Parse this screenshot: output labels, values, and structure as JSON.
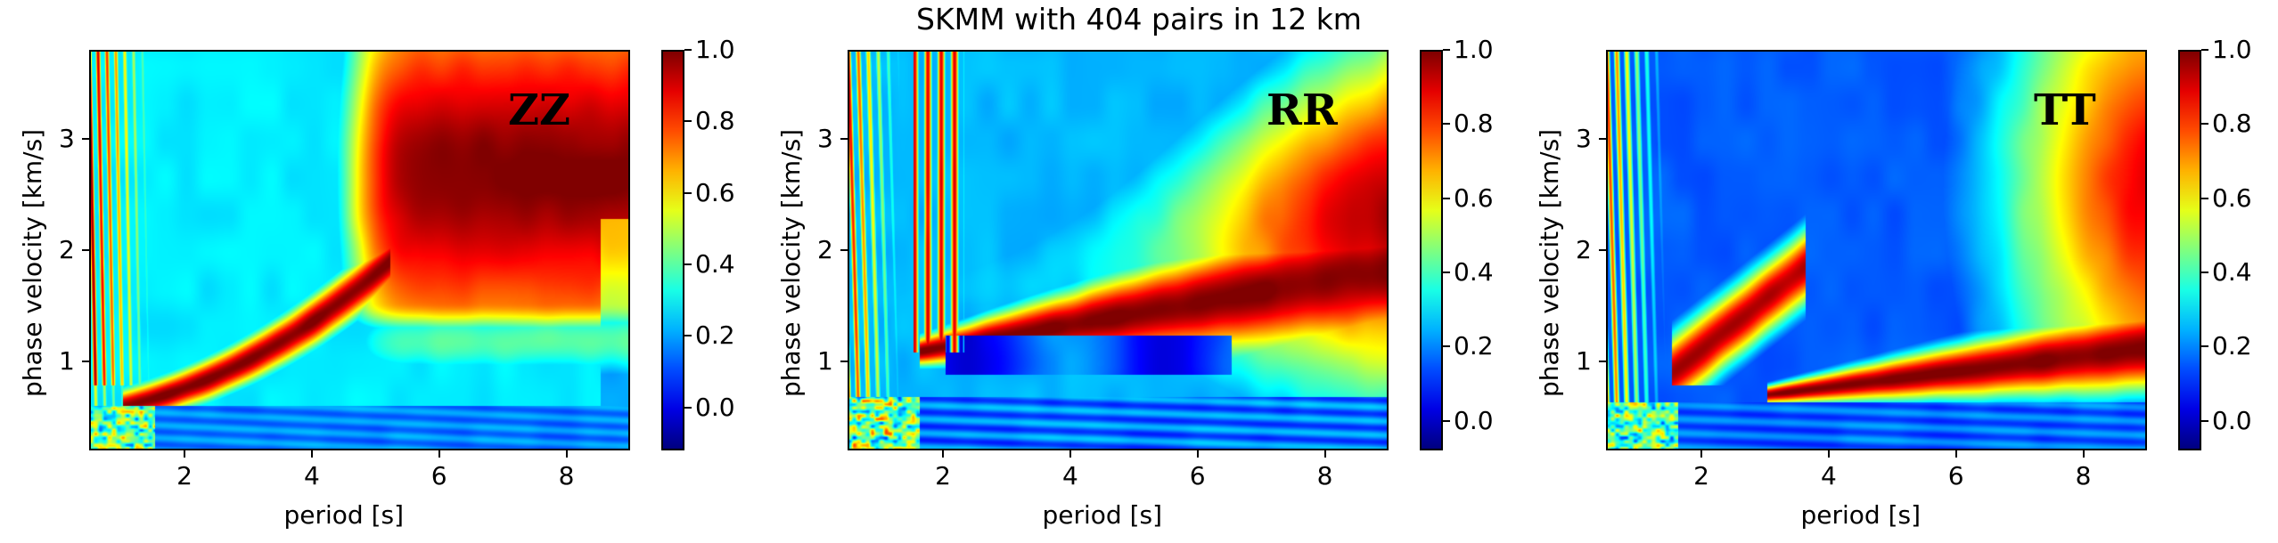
{
  "title": "SKMM with 404 pairs in 12 km",
  "chart_data": [
    {
      "type": "heatmap",
      "label": "ZZ",
      "xlabel": "period [s]",
      "ylabel": "phase velocity [km/s]",
      "xlim": [
        0.5,
        9.0
      ],
      "ylim": [
        0.2,
        3.8
      ],
      "xticks": [
        2,
        4,
        6,
        8
      ],
      "yticks": [
        1,
        2,
        3
      ],
      "colormap": "jet",
      "clim": [
        -0.12,
        1.0
      ],
      "colorbar_ticks": [
        "0.0",
        "0.2",
        "0.4",
        "0.6",
        "0.8",
        "1.0"
      ],
      "colorbar_tick_values": [
        0.0,
        0.2,
        0.4,
        0.6,
        0.8,
        1.0
      ]
    },
    {
      "type": "heatmap",
      "label": "RR",
      "xlabel": "period [s]",
      "ylabel": "phase velocity [km/s]",
      "xlim": [
        0.5,
        9.0
      ],
      "ylim": [
        0.2,
        3.8
      ],
      "xticks": [
        2,
        4,
        6,
        8
      ],
      "yticks": [
        1,
        2,
        3
      ],
      "colormap": "jet",
      "clim": [
        -0.08,
        1.0
      ],
      "colorbar_ticks": [
        "0.0",
        "0.2",
        "0.4",
        "0.6",
        "0.8",
        "1.0"
      ],
      "colorbar_tick_values": [
        0.0,
        0.2,
        0.4,
        0.6,
        0.8,
        1.0
      ]
    },
    {
      "type": "heatmap",
      "label": "TT",
      "xlabel": "period [s]",
      "ylabel": "phase velocity [km/s]",
      "xlim": [
        0.5,
        9.0
      ],
      "ylim": [
        0.2,
        3.8
      ],
      "xticks": [
        2,
        4,
        6,
        8
      ],
      "yticks": [
        1,
        2,
        3
      ],
      "colormap": "jet",
      "clim": [
        -0.08,
        1.0
      ],
      "colorbar_ticks": [
        "0.0",
        "0.2",
        "0.4",
        "0.6",
        "0.8",
        "1.0"
      ],
      "colorbar_tick_values": [
        0.0,
        0.2,
        0.4,
        0.6,
        0.8,
        1.0
      ]
    }
  ]
}
